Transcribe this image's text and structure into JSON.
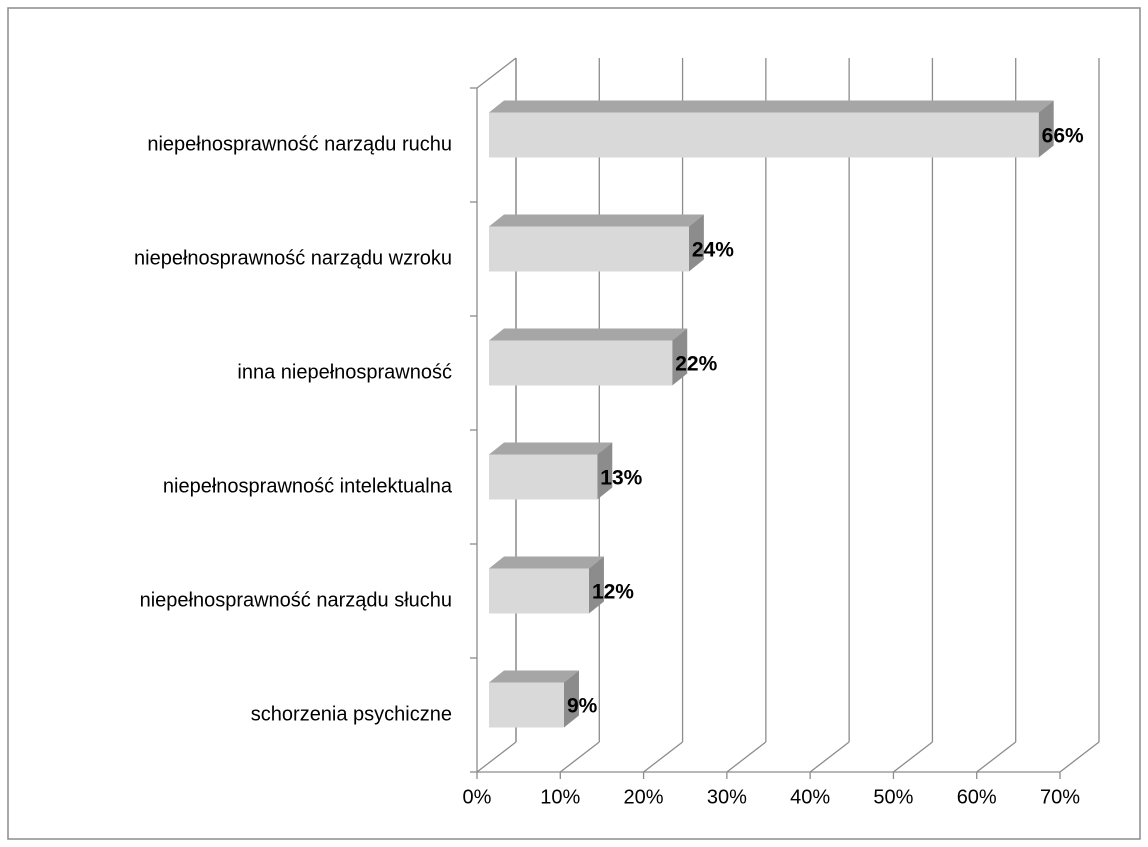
{
  "chart_data": {
    "type": "bar3d_horizontal",
    "categories": [
      "niepełnosprawność narządu ruchu",
      "niepełnosprawność narządu wzroku",
      "inna niepełnosprawność",
      "niepełnosprawność intelektualna",
      "niepełnosprawność narządu słuchu",
      "schorzenia psychiczne"
    ],
    "values": [
      66,
      24,
      22,
      13,
      12,
      9
    ],
    "value_labels": [
      "66%",
      "24%",
      "22%",
      "13%",
      "12%",
      "9%"
    ],
    "xlim": [
      0,
      70
    ],
    "xticks": [
      {
        "value": 0,
        "label": "0%"
      },
      {
        "value": 10,
        "label": "10%"
      },
      {
        "value": 20,
        "label": "20%"
      },
      {
        "value": 30,
        "label": "30%"
      },
      {
        "value": 40,
        "label": "40%"
      },
      {
        "value": 50,
        "label": "50%"
      },
      {
        "value": 60,
        "label": "60%"
      },
      {
        "value": 70,
        "label": "70%"
      }
    ],
    "grid": true,
    "colors": {
      "front": "#d9d9d9",
      "top": "#a6a6a6",
      "side": "#8c8c8c"
    }
  }
}
